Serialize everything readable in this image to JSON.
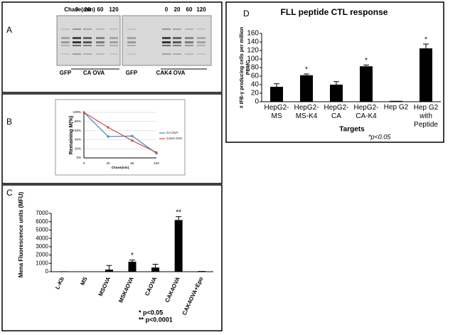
{
  "panels": [
    "A",
    "B",
    "C",
    "D"
  ],
  "blot": {
    "chase_label": "Chase(min)",
    "blots": [
      {
        "timepoints": [
          0,
          20,
          60,
          120
        ],
        "lanes": [
          "GFP",
          "CA OVA"
        ]
      },
      {
        "timepoints": [
          0,
          20,
          60,
          120
        ],
        "lanes": [
          "GFP",
          "CAK4 OVA"
        ]
      }
    ]
  },
  "chart_data": [
    {
      "type": "line",
      "ylabel": "Remaining M(%)",
      "xlabel": "Chase(min)",
      "categories": [
        "0",
        "20",
        "60",
        "120"
      ],
      "series": [
        {
          "name": "CA OVA",
          "color": "#4f81bd",
          "values": [
            100,
            47,
            48,
            10
          ]
        },
        {
          "name": "CAK4 OVA",
          "color": "#c0504d",
          "values": [
            100,
            67,
            38,
            12
          ]
        }
      ],
      "ylim": [
        0,
        100
      ],
      "yticks": [
        {
          "value": 0,
          "label": "0%"
        },
        {
          "value": 20,
          "label": "20%"
        },
        {
          "value": 40,
          "label": "40%"
        },
        {
          "value": 60,
          "label": "60%"
        },
        {
          "value": 80,
          "label": "80%"
        },
        {
          "value": 100,
          "label": "100%"
        }
      ],
      "grid": true,
      "legend": "right"
    },
    {
      "type": "bar",
      "ylabel": "Mena Fluorescence units (MFU)",
      "categories": [
        "L-Kb",
        "MS",
        "MSOVA",
        "MSK4OVA",
        "CAOVA",
        "CAK4OVA",
        "CAK4OVA+Epo"
      ],
      "values": [
        50,
        30,
        250,
        1200,
        500,
        6200,
        80
      ],
      "errors": [
        null,
        null,
        500,
        200,
        400,
        400,
        null
      ],
      "color": "#000000",
      "ylim": [
        0,
        7000
      ],
      "yticks": [
        0,
        1000,
        2000,
        3000,
        4000,
        5000,
        6000,
        7000
      ],
      "annotations": [
        {
          "text": "*",
          "category": "MSK4OVA"
        },
        {
          "text": "**",
          "category": "CAK4OVA"
        }
      ],
      "footnotes": [
        "* p<0.05",
        "** p<0.0001"
      ]
    },
    {
      "type": "bar",
      "title": "FLL peptide CTL response",
      "ylabel": "# IFB-γ producing cells per million\nPBMC",
      "xlabel": "Targets",
      "categories": [
        "HepG2-\nMS",
        "HepG2-\nMS-K4",
        "HepG2-\nCA",
        "HepG2-\nCA-K4",
        "Hep G2",
        "Hep G2\nwith\nPeptide"
      ],
      "values": [
        35,
        62,
        40,
        83,
        2,
        125
      ],
      "errors": [
        7,
        3,
        7,
        3,
        null,
        10
      ],
      "color": "#000000",
      "ylim": [
        0,
        160
      ],
      "yticks": [
        0,
        20,
        40,
        60,
        80,
        100,
        120,
        140,
        160
      ],
      "annotations": [
        {
          "text": "*",
          "category": "HepG2-\nMS-K4"
        },
        {
          "text": "*",
          "category": "HepG2-\nCA-K4"
        },
        {
          "text": "*",
          "category": "Hep G2\nwith\nPeptide"
        }
      ],
      "footnotes": [
        "*p<0.05"
      ]
    }
  ]
}
